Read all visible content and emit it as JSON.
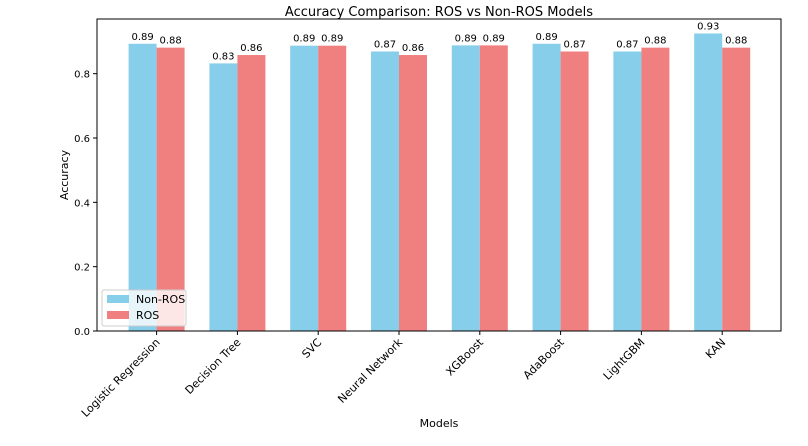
{
  "chart_data": {
    "type": "bar",
    "title": "Accuracy Comparison: ROS vs Non-ROS Models",
    "xlabel": "Models",
    "ylabel": "Accuracy",
    "categories": [
      "Logistic Regression",
      "Decision Tree",
      "SVC",
      "Neural Network",
      "XGBoost",
      "AdaBoost",
      "LightGBM",
      "KAN"
    ],
    "series": [
      {
        "name": "Non-ROS",
        "color": "#87ceeb",
        "values": [
          0.893,
          0.832,
          0.887,
          0.869,
          0.888,
          0.893,
          0.869,
          0.925
        ],
        "labels": [
          "0.89",
          "0.83",
          "0.89",
          "0.87",
          "0.89",
          "0.89",
          "0.87",
          "0.93"
        ]
      },
      {
        "name": "ROS",
        "color": "#f08080",
        "values": [
          0.881,
          0.858,
          0.887,
          0.858,
          0.888,
          0.869,
          0.881,
          0.881
        ],
        "labels": [
          "0.88",
          "0.86",
          "0.89",
          "0.86",
          "0.89",
          "0.87",
          "0.88",
          "0.88"
        ]
      }
    ],
    "yticks": [
      "0.0",
      "0.2",
      "0.4",
      "0.6",
      "0.8"
    ],
    "ylim": [
      0,
      0.97
    ],
    "grid": false,
    "legend_position": "lower-left"
  }
}
